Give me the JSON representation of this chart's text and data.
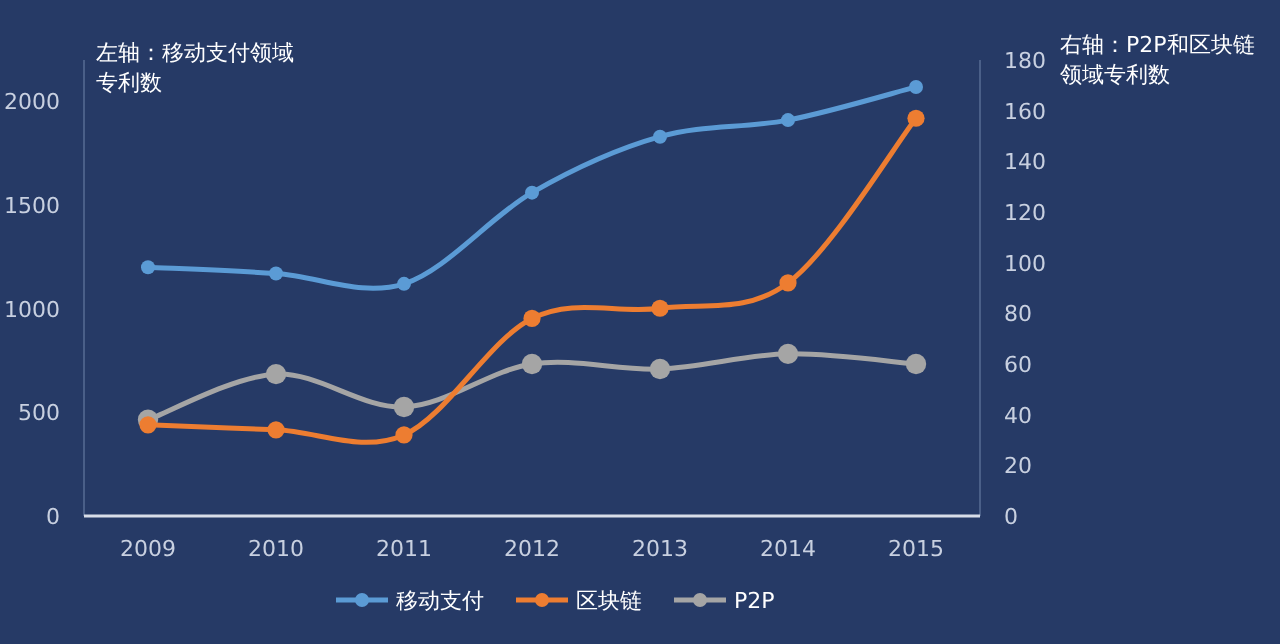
{
  "chart_data": {
    "type": "line",
    "ylabel": "左轴：移动支付领域专利数",
    "y2label": "右轴：P2P和区块链领域专利数",
    "categories": [
      "2009",
      "2010",
      "2011",
      "2012",
      "2013",
      "2014",
      "2015"
    ],
    "series": [
      {
        "name": "移动支付",
        "color": "#5b9bd5",
        "values": [
          1200,
          1170,
          1120,
          1560,
          1830,
          1910,
          2070
        ]
      },
      {
        "name": "区块链",
        "color": "#ed7d31",
        "axis": "y2",
        "values": [
          36,
          34,
          32,
          78,
          82,
          92,
          157
        ]
      },
      {
        "name": "P2P",
        "color": "#a5a5a5",
        "axis": "y2",
        "values": [
          38,
          56,
          43,
          60,
          58,
          64,
          60
        ]
      }
    ],
    "ylim": [
      0,
      2200
    ],
    "yticks": [
      0,
      500,
      1000,
      1500,
      2000
    ],
    "y2lim": [
      0,
      180
    ],
    "y2ticks": [
      0,
      20,
      40,
      60,
      80,
      100,
      120,
      140,
      160,
      180
    ],
    "marker": "circle",
    "legend": "bottom",
    "grid": false
  }
}
